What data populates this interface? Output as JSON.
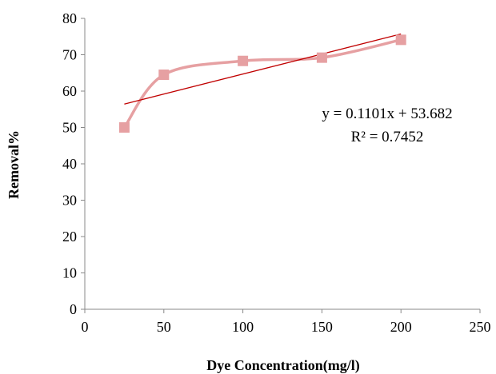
{
  "chart_data": {
    "type": "scatter",
    "title": "",
    "xlabel": "Dye Concentration(mg/l)",
    "ylabel": "Removal%",
    "xlim": [
      0,
      250
    ],
    "ylim": [
      0,
      80
    ],
    "x_ticks": [
      0,
      50,
      100,
      150,
      200,
      250
    ],
    "y_ticks": [
      0,
      10,
      20,
      30,
      40,
      50,
      60,
      70,
      80
    ],
    "grid": false,
    "legend": "none",
    "series": [
      {
        "x": [
          25,
          50,
          100,
          150,
          200
        ],
        "y": [
          50,
          64.5,
          68.3,
          69.2,
          74.1
        ],
        "marker": "square",
        "line": "smooth",
        "color": "#E6A0A2"
      }
    ],
    "trendline": {
      "type": "linear",
      "slope": 0.1101,
      "intercept": 53.682,
      "x_range": [
        25,
        200
      ],
      "color": "#C00000",
      "equation": "y = 0.1101x + 53.682",
      "r_squared": "R² = 0.7452"
    }
  }
}
